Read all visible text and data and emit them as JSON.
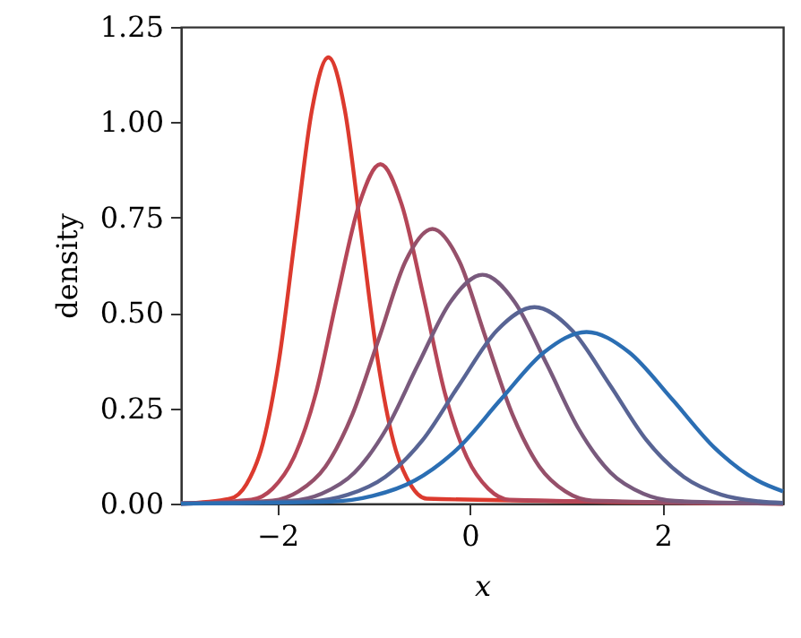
{
  "chart_data": {
    "type": "line",
    "xlabel": "x",
    "ylabel": "density",
    "xlim": [
      -3,
      3.25
    ],
    "xticks": [
      -2,
      0,
      2
    ],
    "ylim": [
      0,
      1.25
    ],
    "yticks": [
      {
        "value": 0,
        "label": "0.00"
      },
      {
        "value": 0.25,
        "label": "0.25"
      },
      {
        "value": 0.5,
        "label": "0.50"
      },
      {
        "value": 0.75,
        "label": "0.75"
      },
      {
        "value": 1,
        "label": "1.00"
      },
      {
        "value": 1.25,
        "label": "1.25"
      }
    ],
    "grid": false,
    "marker": "none",
    "line_style": "solid",
    "series": [
      {
        "color": "#dc3a2e",
        "x": [
          -3,
          -2.49,
          -2.32,
          -2.15,
          -1.98,
          -1.81,
          -1.64,
          -1.47,
          -1.3,
          -1.13,
          -0.96,
          -0.79,
          -0.62,
          -0.45,
          3.25
        ],
        "values": [
          0,
          0.013,
          0.051,
          0.158,
          0.38,
          0.71,
          1.033,
          1.17,
          1.033,
          0.71,
          0.38,
          0.158,
          0.051,
          0.013,
          0
        ]
      },
      {
        "color": "#b54658",
        "x": [
          -3,
          -2.27,
          -2.05,
          -1.83,
          -1.6,
          -1.38,
          -1.15,
          -0.93,
          -0.71,
          -0.48,
          -0.26,
          -0.03,
          0.19,
          0.41,
          3.25
        ],
        "values": [
          0,
          0.01,
          0.039,
          0.12,
          0.289,
          0.54,
          0.785,
          0.89,
          0.785,
          0.54,
          0.289,
          0.12,
          0.039,
          0.01,
          0
        ]
      },
      {
        "color": "#96506a",
        "x": [
          -3,
          -2.05,
          -1.78,
          -1.5,
          -1.22,
          -0.94,
          -0.67,
          -0.39,
          -0.11,
          0.16,
          0.44,
          0.72,
          0.99,
          1.27,
          3.25
        ],
        "values": [
          0,
          0.008,
          0.032,
          0.097,
          0.234,
          0.437,
          0.635,
          0.72,
          0.635,
          0.437,
          0.234,
          0.097,
          0.032,
          0.008,
          0
        ]
      },
      {
        "color": "#785a7d",
        "x": [
          -3,
          -1.87,
          -1.54,
          -1.2,
          -0.87,
          -0.54,
          -0.2,
          0.13,
          0.46,
          0.8,
          1.13,
          1.46,
          1.8,
          2.13,
          3.25
        ],
        "values": [
          0,
          0.007,
          0.026,
          0.081,
          0.195,
          0.364,
          0.53,
          0.6,
          0.53,
          0.364,
          0.195,
          0.081,
          0.026,
          0.007,
          0
        ]
      },
      {
        "color": "#586494",
        "x": [
          -3,
          -1.66,
          -1.27,
          -0.88,
          -0.49,
          -0.11,
          0.28,
          0.67,
          1.06,
          1.45,
          1.83,
          2.22,
          2.61,
          3.0,
          3.25
        ],
        "values": [
          0,
          0.006,
          0.023,
          0.07,
          0.167,
          0.312,
          0.454,
          0.515,
          0.454,
          0.312,
          0.167,
          0.07,
          0.023,
          0.006,
          0.002
        ]
      },
      {
        "color": "#2b6eb3",
        "x": [
          -3,
          -1.45,
          -1.01,
          -0.57,
          -0.12,
          0.32,
          0.77,
          1.21,
          1.65,
          2.1,
          2.54,
          2.98,
          3.25
        ],
        "values": [
          0,
          0.005,
          0.02,
          0.061,
          0.146,
          0.273,
          0.397,
          0.45,
          0.397,
          0.273,
          0.146,
          0.061,
          0.032
        ]
      }
    ]
  }
}
